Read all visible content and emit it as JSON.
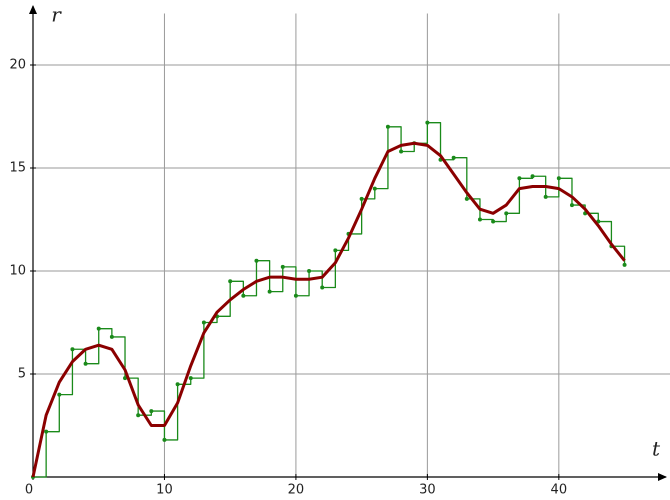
{
  "chart_data": {
    "type": "line",
    "x": [
      0,
      1,
      2,
      3,
      4,
      5,
      6,
      7,
      8,
      9,
      10,
      11,
      12,
      13,
      14,
      15,
      16,
      17,
      18,
      19,
      20,
      21,
      22,
      23,
      24,
      25,
      26,
      27,
      28,
      29,
      30,
      31,
      32,
      33,
      34,
      35,
      36,
      37,
      38,
      39,
      40,
      41,
      42,
      43,
      44,
      45
    ],
    "series": [
      {
        "color": "#1a8a1a",
        "steps": true,
        "markers": true,
        "values": [
          0,
          2.2,
          4.0,
          6.2,
          5.5,
          7.2,
          6.8,
          4.8,
          3.0,
          3.2,
          1.8,
          4.5,
          4.8,
          7.5,
          7.8,
          9.5,
          8.8,
          10.5,
          9.0,
          10.2,
          8.8,
          10.0,
          9.2,
          11.0,
          11.8,
          13.5,
          14.0,
          17.0,
          15.8,
          16.2,
          17.2,
          15.4,
          15.5,
          13.5,
          12.5,
          12.4,
          12.8,
          14.5,
          14.6,
          13.6,
          14.5,
          13.2,
          12.8,
          12.4,
          11.2,
          10.3
        ]
      },
      {
        "color": "#8b0000",
        "steps": false,
        "markers": false,
        "values": [
          0,
          3.0,
          4.6,
          5.6,
          6.2,
          6.4,
          6.2,
          5.2,
          3.5,
          2.5,
          2.5,
          3.6,
          5.4,
          7.0,
          8.0,
          8.6,
          9.1,
          9.5,
          9.7,
          9.7,
          9.6,
          9.6,
          9.7,
          10.4,
          11.6,
          13.0,
          14.5,
          15.8,
          16.1,
          16.2,
          16.1,
          15.6,
          14.7,
          13.8,
          13.0,
          12.8,
          13.2,
          14.0,
          14.1,
          14.1,
          14.0,
          13.6,
          13.0,
          12.2,
          11.3,
          10.5
        ]
      }
    ],
    "xlabel": "t",
    "ylabel": "r",
    "xlim": [
      0,
      48
    ],
    "ylim": [
      0,
      22.5
    ],
    "xticks": [
      0,
      10,
      20,
      30,
      40
    ],
    "yticks": [
      5,
      10,
      15,
      20
    ],
    "grid": true
  }
}
